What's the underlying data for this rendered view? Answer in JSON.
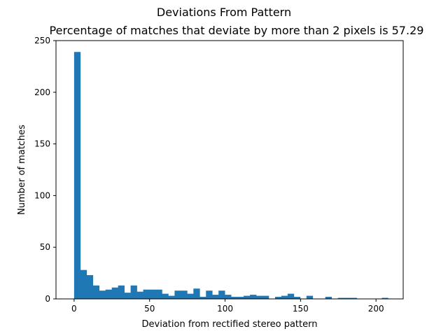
{
  "chart_data": {
    "type": "bar",
    "suptitle": "Deviations From Pattern",
    "title": "Percentage of matches that deviate by more than 2 pixels is 57.29",
    "xlabel": "Deviation from rectified stereo pattern",
    "ylabel": "Number of matches",
    "xlim": [
      -12,
      218
    ],
    "ylim": [
      0,
      250
    ],
    "xticks": [
      0,
      50,
      100,
      150,
      200
    ],
    "yticks": [
      0,
      50,
      100,
      150,
      200,
      250
    ],
    "bin_edges": [
      0.0,
      4.16,
      8.32,
      12.48,
      16.64,
      20.8,
      24.96,
      29.12,
      33.28,
      37.44,
      41.6,
      45.76,
      49.92,
      54.08,
      58.24,
      62.4,
      66.56,
      70.72,
      74.88,
      79.04,
      83.2,
      87.36,
      91.52,
      95.68,
      99.84,
      104.0,
      108.16,
      112.32,
      116.48,
      120.64,
      124.8,
      128.96,
      133.12,
      137.28,
      141.44,
      145.6,
      149.76,
      153.92,
      158.08,
      162.24,
      166.4,
      170.56,
      174.72,
      178.88,
      183.04,
      187.2,
      191.36,
      195.52,
      199.68,
      203.84,
      208.0
    ],
    "counts": [
      239,
      28,
      23,
      13,
      8,
      9,
      11,
      13,
      6,
      13,
      7,
      9,
      9,
      9,
      5,
      3,
      8,
      8,
      5,
      10,
      2,
      8,
      4,
      8,
      4,
      2,
      2,
      3,
      4,
      3,
      3,
      0,
      2,
      3,
      5,
      2,
      0,
      3,
      0,
      0,
      2,
      0,
      1,
      1,
      1,
      0,
      0,
      0,
      0,
      1
    ],
    "bar_color": "#1f77b4"
  }
}
